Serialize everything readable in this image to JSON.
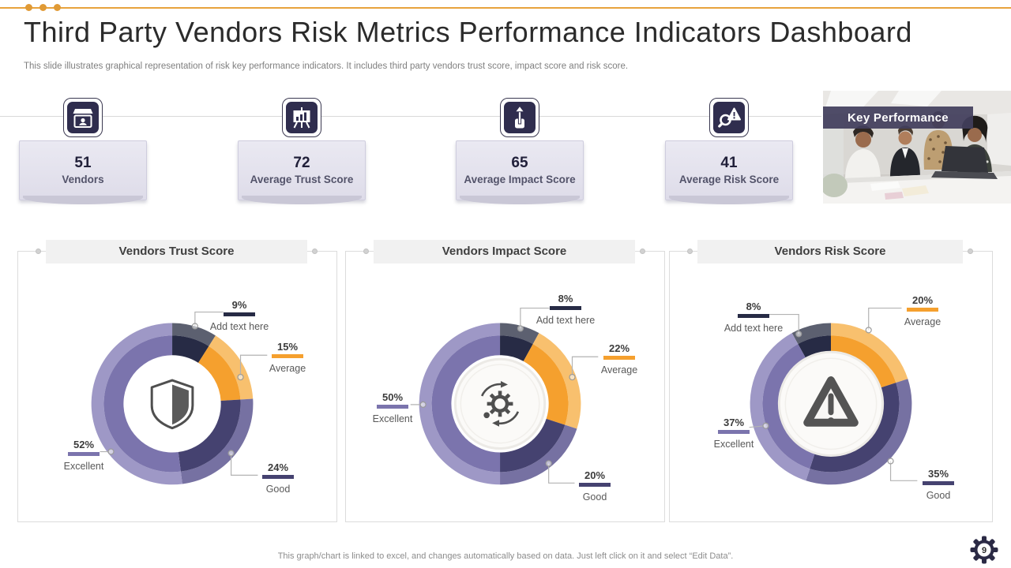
{
  "slide": {
    "title": "Third Party Vendors Risk Metrics Performance Indicators Dashboard",
    "subtitle": "This slide illustrates graphical representation of risk key performance indicators. It includes third party vendors trust score, impact score and risk score.",
    "footer_note": "This graph/chart is linked to excel,  and changes automatically based on data. Just left click on it and select “Edit Data”.",
    "page_number": "9",
    "accent_color": "#E8A33D"
  },
  "kpis": [
    {
      "value": "51",
      "label": "Vendors",
      "icon": "vendor-stall-icon"
    },
    {
      "value": "72",
      "label": "Average Trust Score",
      "icon": "presentation-chart-icon"
    },
    {
      "value": "65",
      "label": "Average Impact Score",
      "icon": "impact-arrow-icon"
    },
    {
      "value": "41",
      "label": "Average Risk Score",
      "icon": "risk-search-icon"
    }
  ],
  "photo": {
    "caption": "Key Performance"
  },
  "chart_data": [
    {
      "type": "donut",
      "title": "Vendors Trust Score",
      "center_icon": "shield-icon",
      "rotation_deg": 0,
      "segments": [
        {
          "name": "Add text here",
          "value": 9,
          "value_label": "9%",
          "color": "#272b45",
          "light_color": "#5c6070"
        },
        {
          "name": "Average",
          "value": 15,
          "value_label": "15%",
          "color": "#f5a02e",
          "light_color": "#f8c06e"
        },
        {
          "name": "Good",
          "value": 24,
          "value_label": "24%",
          "color": "#454270",
          "light_color": "#7671a2"
        },
        {
          "name": "Excellent",
          "value": 52,
          "value_label": "52%",
          "color": "#7b74ad",
          "light_color": "#9e98c6"
        }
      ]
    },
    {
      "type": "donut",
      "title": "Vendors Impact Score",
      "center_icon": "process-sync-icon",
      "rotation_deg": 0,
      "segments": [
        {
          "name": "Add text here",
          "value": 8,
          "value_label": "8%",
          "color": "#272b45",
          "light_color": "#5c6070"
        },
        {
          "name": "Average",
          "value": 22,
          "value_label": "22%",
          "color": "#f5a02e",
          "light_color": "#f8c06e"
        },
        {
          "name": "Good",
          "value": 20,
          "value_label": "20%",
          "color": "#454270",
          "light_color": "#7671a2"
        },
        {
          "name": "Excellent",
          "value": 50,
          "value_label": "50%",
          "color": "#7b74ad",
          "light_color": "#9e98c6"
        }
      ]
    },
    {
      "type": "donut",
      "title": "Vendors Risk Score",
      "center_icon": "warning-triangle-icon",
      "rotation_deg": -28.8,
      "segments": [
        {
          "name": "Add text here",
          "value": 8,
          "value_label": "8%",
          "color": "#272b45",
          "light_color": "#5c6070"
        },
        {
          "name": "Average",
          "value": 20,
          "value_label": "20%",
          "color": "#f5a02e",
          "light_color": "#f8c06e"
        },
        {
          "name": "Good",
          "value": 35,
          "value_label": "35%",
          "color": "#454270",
          "light_color": "#7671a2"
        },
        {
          "name": "Excellent",
          "value": 37,
          "value_label": "37%",
          "color": "#7b74ad",
          "light_color": "#9e98c6"
        }
      ]
    }
  ]
}
